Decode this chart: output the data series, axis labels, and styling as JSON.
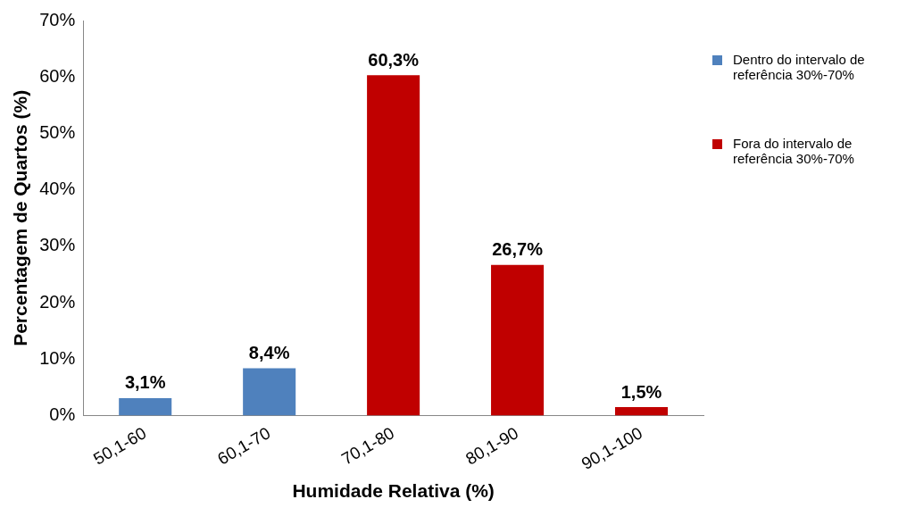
{
  "chart_data": {
    "type": "bar",
    "xlabel": "Humidade Relativa (%)",
    "ylabel": "Percentagem de Quartos (%)",
    "categories": [
      "50,1-60",
      "60,1-70",
      "70,1-80",
      "80,1-90",
      "90,1-100"
    ],
    "series": [
      {
        "name": "Dentro do intervalo de referência 30%-70%",
        "color": "#4f81bd",
        "values": [
          3.1,
          8.4,
          null,
          null,
          null
        ],
        "value_labels": [
          "3,1%",
          "8,4%",
          null,
          null,
          null
        ]
      },
      {
        "name": "Fora do intervalo de referência 30%-70%",
        "color": "#c00000",
        "values": [
          null,
          null,
          60.3,
          26.7,
          1.5
        ],
        "value_labels": [
          null,
          null,
          "60,3%",
          "26,7%",
          "1,5%"
        ]
      }
    ],
    "ylim": [
      0,
      70
    ],
    "yticks": [
      {
        "value": 0,
        "label": "0%"
      },
      {
        "value": 10,
        "label": "10%"
      },
      {
        "value": 20,
        "label": "20%"
      },
      {
        "value": 30,
        "label": "30%"
      },
      {
        "value": 40,
        "label": "40%"
      },
      {
        "value": 50,
        "label": "50%"
      },
      {
        "value": 60,
        "label": "60%"
      },
      {
        "value": 70,
        "label": "70%"
      }
    ],
    "grid": false,
    "legend": "right"
  }
}
